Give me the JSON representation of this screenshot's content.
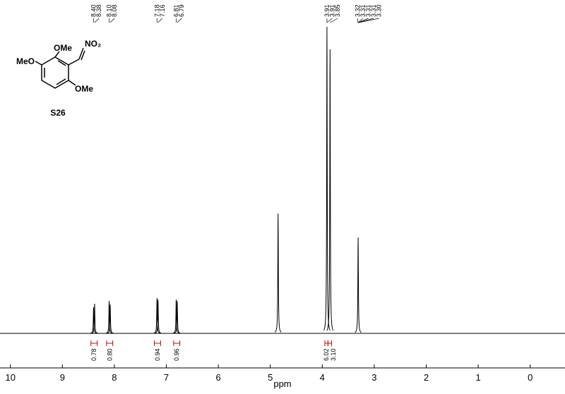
{
  "chart_data": {
    "type": "spectrum",
    "x_label": "ppm",
    "xlim": [
      10.2,
      -0.67
    ],
    "xticks": [
      10,
      9,
      8,
      7,
      6,
      5,
      4,
      3,
      2,
      1,
      0
    ],
    "ylim": [
      0,
      450
    ],
    "color": "#000000",
    "integral_color": "#cc0000",
    "x": [
      8.4,
      8.38,
      8.1,
      8.08,
      7.18,
      7.16,
      6.81,
      6.79,
      4.85,
      3.91,
      3.85,
      3.31
    ],
    "values": [
      37,
      42,
      46,
      41,
      50,
      48,
      48,
      46,
      170,
      435,
      403,
      136
    ],
    "peak_labels": [
      {
        "value": 8.4,
        "label": "8.40"
      },
      8.38,
      {
        "value": 8.1,
        "label": "8.10"
      },
      8.08,
      7.18,
      7.16,
      6.81,
      6.79,
      3.91,
      3.91,
      3.85,
      3.32,
      3.31,
      3.31,
      3.31,
      {
        "value": 3.3,
        "label": "3.30"
      }
    ],
    "integrals": [
      {
        "range": [
          8.45,
          8.33
        ],
        "value": 0.78
      },
      {
        "range": [
          8.15,
          8.03
        ],
        "value": 0.8,
        "label": "0.80"
      },
      {
        "range": [
          7.23,
          7.11
        ],
        "value": 0.94
      },
      {
        "range": [
          6.86,
          6.74
        ],
        "value": 0.96
      },
      {
        "range": [
          3.95,
          3.89
        ],
        "value": 6.02
      },
      {
        "range": [
          3.89,
          3.82
        ],
        "value": 3.1,
        "label": "3.10"
      }
    ]
  },
  "structure": {
    "substituents": [
      "OMe",
      "NO₂",
      "MeO",
      "OMe"
    ],
    "name": "S26"
  }
}
